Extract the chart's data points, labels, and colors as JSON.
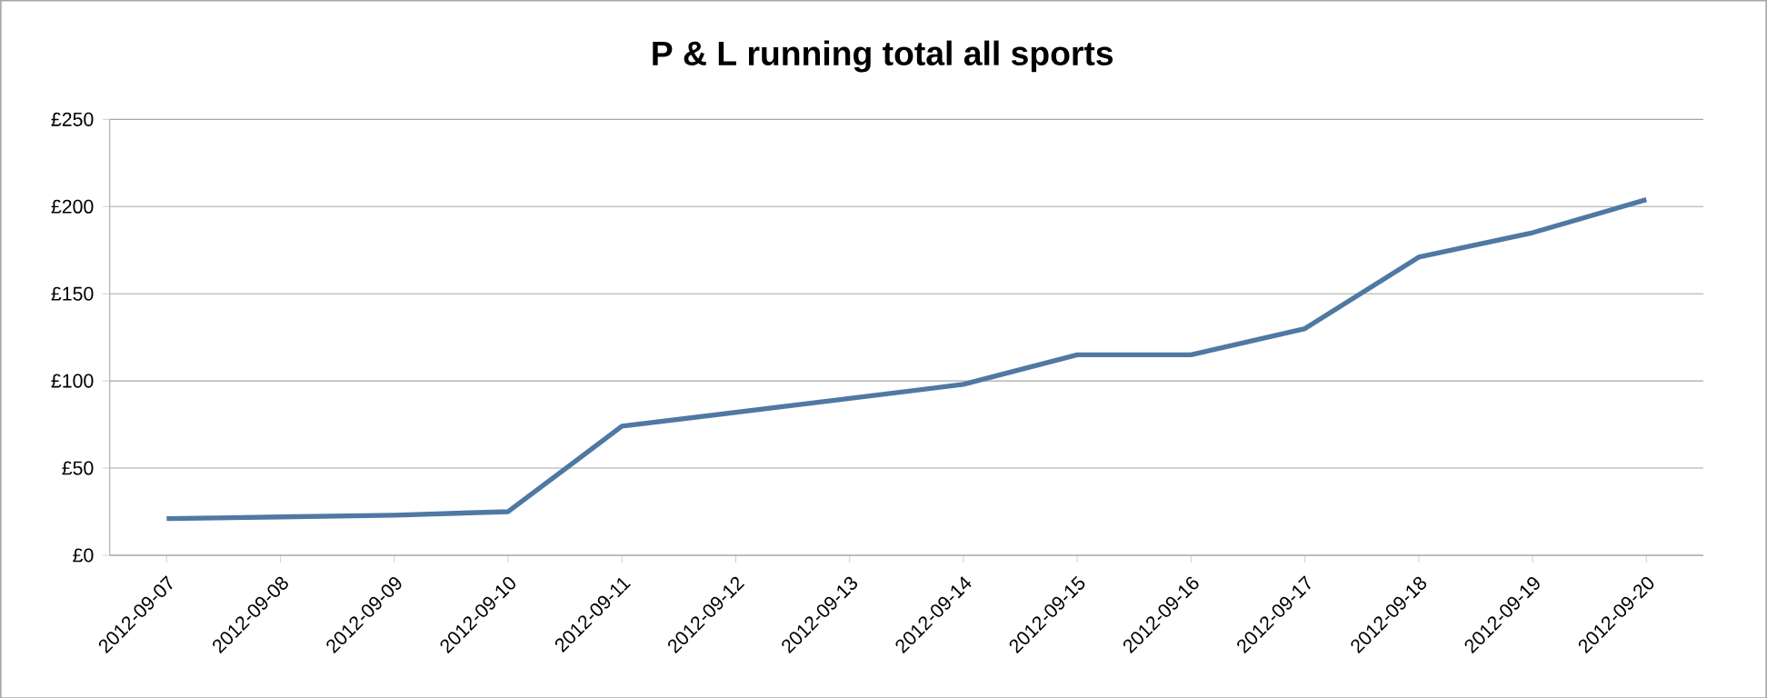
{
  "chart_data": {
    "type": "line",
    "title": "P & L running total all sports",
    "categories": [
      "2012-09-07",
      "2012-09-08",
      "2012-09-09",
      "2012-09-10",
      "2012-09-11",
      "2012-09-12",
      "2012-09-13",
      "2012-09-14",
      "2012-09-15",
      "2012-09-16",
      "2012-09-17",
      "2012-09-18",
      "2012-09-19",
      "2012-09-20"
    ],
    "series": [
      {
        "color": "#4f79a3",
        "values": [
          21,
          22,
          23,
          25,
          74,
          82,
          90,
          98,
          115,
          115,
          130,
          171,
          185,
          204
        ]
      }
    ],
    "ylim": [
      0,
      250
    ],
    "yticks": [
      {
        "value": 0,
        "label": "£0"
      },
      {
        "value": 50,
        "label": "£50"
      },
      {
        "value": 100,
        "label": "£100"
      },
      {
        "value": 150,
        "label": "£150"
      },
      {
        "value": 200,
        "label": "£200"
      },
      {
        "value": 250,
        "label": "£250"
      }
    ],
    "grid": "y",
    "marker": "none",
    "line_style": "solid"
  }
}
